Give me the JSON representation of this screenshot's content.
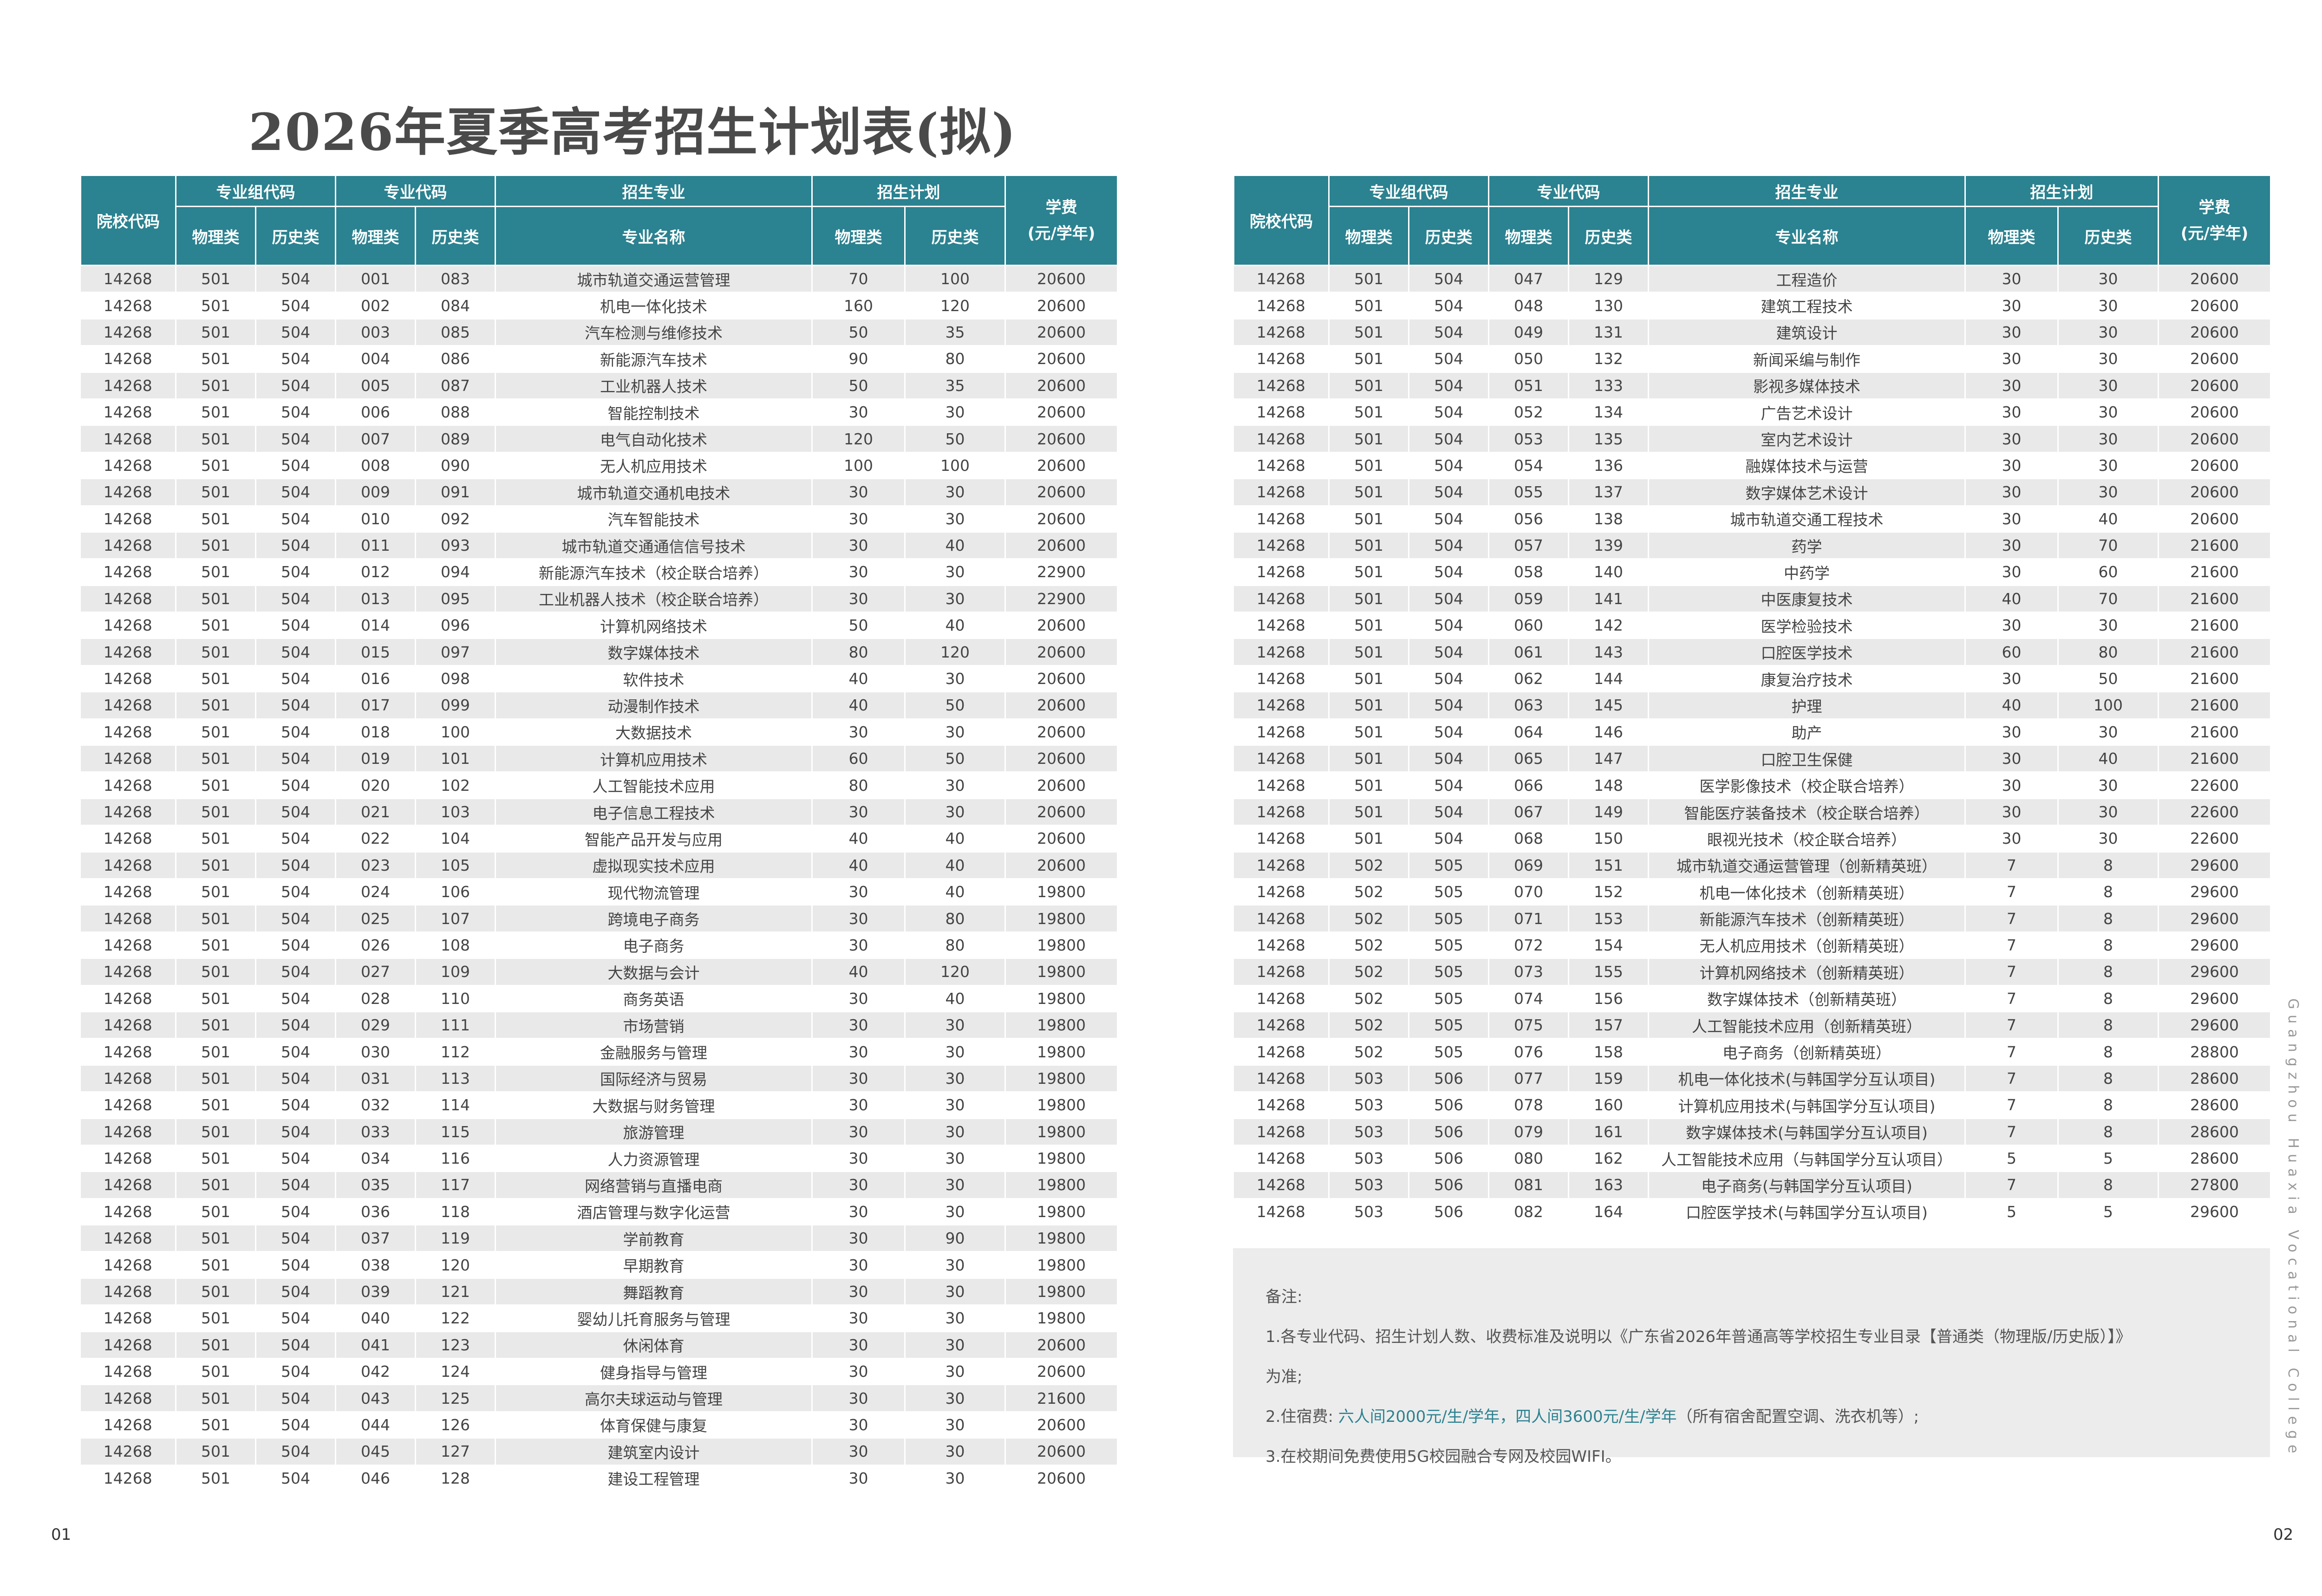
{
  "title": "2026年夏季高考招生计划表(拟)",
  "header": {
    "school_code": "院校代码",
    "group_code": "专业组代码",
    "major_code": "专业代码",
    "major": "招生专业",
    "plan": "招生计划",
    "fee": "学费\n(元/学年)",
    "physics": "物理类",
    "history": "历史类",
    "major_name": "专业名称"
  },
  "left_rows": [
    [
      "14268",
      "501",
      "504",
      "001",
      "083",
      "城市轨道交通运营管理",
      "70",
      "100",
      "20600"
    ],
    [
      "14268",
      "501",
      "504",
      "002",
      "084",
      "机电一体化技术",
      "160",
      "120",
      "20600"
    ],
    [
      "14268",
      "501",
      "504",
      "003",
      "085",
      "汽车检测与维修技术",
      "50",
      "35",
      "20600"
    ],
    [
      "14268",
      "501",
      "504",
      "004",
      "086",
      "新能源汽车技术",
      "90",
      "80",
      "20600"
    ],
    [
      "14268",
      "501",
      "504",
      "005",
      "087",
      "工业机器人技术",
      "50",
      "35",
      "20600"
    ],
    [
      "14268",
      "501",
      "504",
      "006",
      "088",
      "智能控制技术",
      "30",
      "30",
      "20600"
    ],
    [
      "14268",
      "501",
      "504",
      "007",
      "089",
      "电气自动化技术",
      "120",
      "50",
      "20600"
    ],
    [
      "14268",
      "501",
      "504",
      "008",
      "090",
      "无人机应用技术",
      "100",
      "100",
      "20600"
    ],
    [
      "14268",
      "501",
      "504",
      "009",
      "091",
      "城市轨道交通机电技术",
      "30",
      "30",
      "20600"
    ],
    [
      "14268",
      "501",
      "504",
      "010",
      "092",
      "汽车智能技术",
      "30",
      "30",
      "20600"
    ],
    [
      "14268",
      "501",
      "504",
      "011",
      "093",
      "城市轨道交通通信信号技术",
      "30",
      "40",
      "20600"
    ],
    [
      "14268",
      "501",
      "504",
      "012",
      "094",
      "新能源汽车技术（校企联合培养）",
      "30",
      "30",
      "22900"
    ],
    [
      "14268",
      "501",
      "504",
      "013",
      "095",
      "工业机器人技术（校企联合培养）",
      "30",
      "30",
      "22900"
    ],
    [
      "14268",
      "501",
      "504",
      "014",
      "096",
      "计算机网络技术",
      "50",
      "40",
      "20600"
    ],
    [
      "14268",
      "501",
      "504",
      "015",
      "097",
      "数字媒体技术",
      "80",
      "120",
      "20600"
    ],
    [
      "14268",
      "501",
      "504",
      "016",
      "098",
      "软件技术",
      "40",
      "30",
      "20600"
    ],
    [
      "14268",
      "501",
      "504",
      "017",
      "099",
      "动漫制作技术",
      "40",
      "50",
      "20600"
    ],
    [
      "14268",
      "501",
      "504",
      "018",
      "100",
      "大数据技术",
      "30",
      "30",
      "20600"
    ],
    [
      "14268",
      "501",
      "504",
      "019",
      "101",
      "计算机应用技术",
      "60",
      "50",
      "20600"
    ],
    [
      "14268",
      "501",
      "504",
      "020",
      "102",
      "人工智能技术应用",
      "80",
      "30",
      "20600"
    ],
    [
      "14268",
      "501",
      "504",
      "021",
      "103",
      "电子信息工程技术",
      "30",
      "30",
      "20600"
    ],
    [
      "14268",
      "501",
      "504",
      "022",
      "104",
      "智能产品开发与应用",
      "40",
      "40",
      "20600"
    ],
    [
      "14268",
      "501",
      "504",
      "023",
      "105",
      "虚拟现实技术应用",
      "40",
      "40",
      "20600"
    ],
    [
      "14268",
      "501",
      "504",
      "024",
      "106",
      "现代物流管理",
      "30",
      "40",
      "19800"
    ],
    [
      "14268",
      "501",
      "504",
      "025",
      "107",
      "跨境电子商务",
      "30",
      "80",
      "19800"
    ],
    [
      "14268",
      "501",
      "504",
      "026",
      "108",
      "电子商务",
      "30",
      "80",
      "19800"
    ],
    [
      "14268",
      "501",
      "504",
      "027",
      "109",
      "大数据与会计",
      "40",
      "120",
      "19800"
    ],
    [
      "14268",
      "501",
      "504",
      "028",
      "110",
      "商务英语",
      "30",
      "40",
      "19800"
    ],
    [
      "14268",
      "501",
      "504",
      "029",
      "111",
      "市场营销",
      "30",
      "30",
      "19800"
    ],
    [
      "14268",
      "501",
      "504",
      "030",
      "112",
      "金融服务与管理",
      "30",
      "30",
      "19800"
    ],
    [
      "14268",
      "501",
      "504",
      "031",
      "113",
      "国际经济与贸易",
      "30",
      "30",
      "19800"
    ],
    [
      "14268",
      "501",
      "504",
      "032",
      "114",
      "大数据与财务管理",
      "30",
      "30",
      "19800"
    ],
    [
      "14268",
      "501",
      "504",
      "033",
      "115",
      "旅游管理",
      "30",
      "30",
      "19800"
    ],
    [
      "14268",
      "501",
      "504",
      "034",
      "116",
      "人力资源管理",
      "30",
      "30",
      "19800"
    ],
    [
      "14268",
      "501",
      "504",
      "035",
      "117",
      "网络营销与直播电商",
      "30",
      "30",
      "19800"
    ],
    [
      "14268",
      "501",
      "504",
      "036",
      "118",
      "酒店管理与数字化运营",
      "30",
      "30",
      "19800"
    ],
    [
      "14268",
      "501",
      "504",
      "037",
      "119",
      "学前教育",
      "30",
      "90",
      "19800"
    ],
    [
      "14268",
      "501",
      "504",
      "038",
      "120",
      "早期教育",
      "30",
      "30",
      "19800"
    ],
    [
      "14268",
      "501",
      "504",
      "039",
      "121",
      "舞蹈教育",
      "30",
      "30",
      "19800"
    ],
    [
      "14268",
      "501",
      "504",
      "040",
      "122",
      "婴幼儿托育服务与管理",
      "30",
      "30",
      "19800"
    ],
    [
      "14268",
      "501",
      "504",
      "041",
      "123",
      "休闲体育",
      "30",
      "30",
      "20600"
    ],
    [
      "14268",
      "501",
      "504",
      "042",
      "124",
      "健身指导与管理",
      "30",
      "30",
      "20600"
    ],
    [
      "14268",
      "501",
      "504",
      "043",
      "125",
      "高尔夫球运动与管理",
      "30",
      "30",
      "21600"
    ],
    [
      "14268",
      "501",
      "504",
      "044",
      "126",
      "体育保健与康复",
      "30",
      "30",
      "20600"
    ],
    [
      "14268",
      "501",
      "504",
      "045",
      "127",
      "建筑室内设计",
      "30",
      "30",
      "20600"
    ],
    [
      "14268",
      "501",
      "504",
      "046",
      "128",
      "建设工程管理",
      "30",
      "30",
      "20600"
    ]
  ],
  "right_rows": [
    [
      "14268",
      "501",
      "504",
      "047",
      "129",
      "工程造价",
      "30",
      "30",
      "20600"
    ],
    [
      "14268",
      "501",
      "504",
      "048",
      "130",
      "建筑工程技术",
      "30",
      "30",
      "20600"
    ],
    [
      "14268",
      "501",
      "504",
      "049",
      "131",
      "建筑设计",
      "30",
      "30",
      "20600"
    ],
    [
      "14268",
      "501",
      "504",
      "050",
      "132",
      "新闻采编与制作",
      "30",
      "30",
      "20600"
    ],
    [
      "14268",
      "501",
      "504",
      "051",
      "133",
      "影视多媒体技术",
      "30",
      "30",
      "20600"
    ],
    [
      "14268",
      "501",
      "504",
      "052",
      "134",
      "广告艺术设计",
      "30",
      "30",
      "20600"
    ],
    [
      "14268",
      "501",
      "504",
      "053",
      "135",
      "室内艺术设计",
      "30",
      "30",
      "20600"
    ],
    [
      "14268",
      "501",
      "504",
      "054",
      "136",
      "融媒体技术与运营",
      "30",
      "30",
      "20600"
    ],
    [
      "14268",
      "501",
      "504",
      "055",
      "137",
      "数字媒体艺术设计",
      "30",
      "30",
      "20600"
    ],
    [
      "14268",
      "501",
      "504",
      "056",
      "138",
      "城市轨道交通工程技术",
      "30",
      "40",
      "20600"
    ],
    [
      "14268",
      "501",
      "504",
      "057",
      "139",
      "药学",
      "30",
      "70",
      "21600"
    ],
    [
      "14268",
      "501",
      "504",
      "058",
      "140",
      "中药学",
      "30",
      "60",
      "21600"
    ],
    [
      "14268",
      "501",
      "504",
      "059",
      "141",
      "中医康复技术",
      "40",
      "70",
      "21600"
    ],
    [
      "14268",
      "501",
      "504",
      "060",
      "142",
      "医学检验技术",
      "30",
      "30",
      "21600"
    ],
    [
      "14268",
      "501",
      "504",
      "061",
      "143",
      "口腔医学技术",
      "60",
      "80",
      "21600"
    ],
    [
      "14268",
      "501",
      "504",
      "062",
      "144",
      "康复治疗技术",
      "30",
      "50",
      "21600"
    ],
    [
      "14268",
      "501",
      "504",
      "063",
      "145",
      "护理",
      "40",
      "100",
      "21600"
    ],
    [
      "14268",
      "501",
      "504",
      "064",
      "146",
      "助产",
      "30",
      "30",
      "21600"
    ],
    [
      "14268",
      "501",
      "504",
      "065",
      "147",
      "口腔卫生保健",
      "30",
      "40",
      "21600"
    ],
    [
      "14268",
      "501",
      "504",
      "066",
      "148",
      "医学影像技术（校企联合培养）",
      "30",
      "30",
      "22600"
    ],
    [
      "14268",
      "501",
      "504",
      "067",
      "149",
      "智能医疗装备技术（校企联合培养）",
      "30",
      "30",
      "22600"
    ],
    [
      "14268",
      "501",
      "504",
      "068",
      "150",
      "眼视光技术（校企联合培养）",
      "30",
      "30",
      "22600"
    ],
    [
      "14268",
      "502",
      "505",
      "069",
      "151",
      "城市轨道交通运营管理（创新精英班）",
      "7",
      "8",
      "29600"
    ],
    [
      "14268",
      "502",
      "505",
      "070",
      "152",
      "机电一体化技术（创新精英班）",
      "7",
      "8",
      "29600"
    ],
    [
      "14268",
      "502",
      "505",
      "071",
      "153",
      "新能源汽车技术（创新精英班）",
      "7",
      "8",
      "29600"
    ],
    [
      "14268",
      "502",
      "505",
      "072",
      "154",
      "无人机应用技术（创新精英班）",
      "7",
      "8",
      "29600"
    ],
    [
      "14268",
      "502",
      "505",
      "073",
      "155",
      "计算机网络技术（创新精英班）",
      "7",
      "8",
      "29600"
    ],
    [
      "14268",
      "502",
      "505",
      "074",
      "156",
      "数字媒体技术（创新精英班）",
      "7",
      "8",
      "29600"
    ],
    [
      "14268",
      "502",
      "505",
      "075",
      "157",
      "人工智能技术应用（创新精英班）",
      "7",
      "8",
      "29600"
    ],
    [
      "14268",
      "502",
      "505",
      "076",
      "158",
      "电子商务（创新精英班）",
      "7",
      "8",
      "28800"
    ],
    [
      "14268",
      "503",
      "506",
      "077",
      "159",
      "机电一体化技术(与韩国学分互认项目)",
      "7",
      "8",
      "28600"
    ],
    [
      "14268",
      "503",
      "506",
      "078",
      "160",
      "计算机应用技术(与韩国学分互认项目)",
      "7",
      "8",
      "28600"
    ],
    [
      "14268",
      "503",
      "506",
      "079",
      "161",
      "数字媒体技术(与韩国学分互认项目)",
      "7",
      "8",
      "28600"
    ],
    [
      "14268",
      "503",
      "506",
      "080",
      "162",
      "人工智能技术应用（与韩国学分互认项目）",
      "5",
      "5",
      "28600"
    ],
    [
      "14268",
      "503",
      "506",
      "081",
      "163",
      "电子商务(与韩国学分互认项目)",
      "7",
      "8",
      "27800"
    ],
    [
      "14268",
      "503",
      "506",
      "082",
      "164",
      "口腔医学技术(与韩国学分互认项目)",
      "5",
      "5",
      "29600"
    ]
  ],
  "notes": {
    "heading": "备注:",
    "line1": "1.各专业代码、招生计划人数、收费标准及说明以《广东省2026年普通高等学校招生专业目录【普通类（物理版/历史版）】》",
    "line1b": "为准;",
    "line2_pre": "2.住宿费: ",
    "line2_hl": "六人间2000元/生/学年，四人间3600元/生/学年",
    "line2_post": "（所有宿舍配置空调、洗衣机等）;",
    "line3": "3.在校期间免费使用5G校园融合专网及校园WIFI。"
  },
  "page_left": "01",
  "page_right": "02",
  "side_text": "Guangzhou Huaxia Vocational College"
}
